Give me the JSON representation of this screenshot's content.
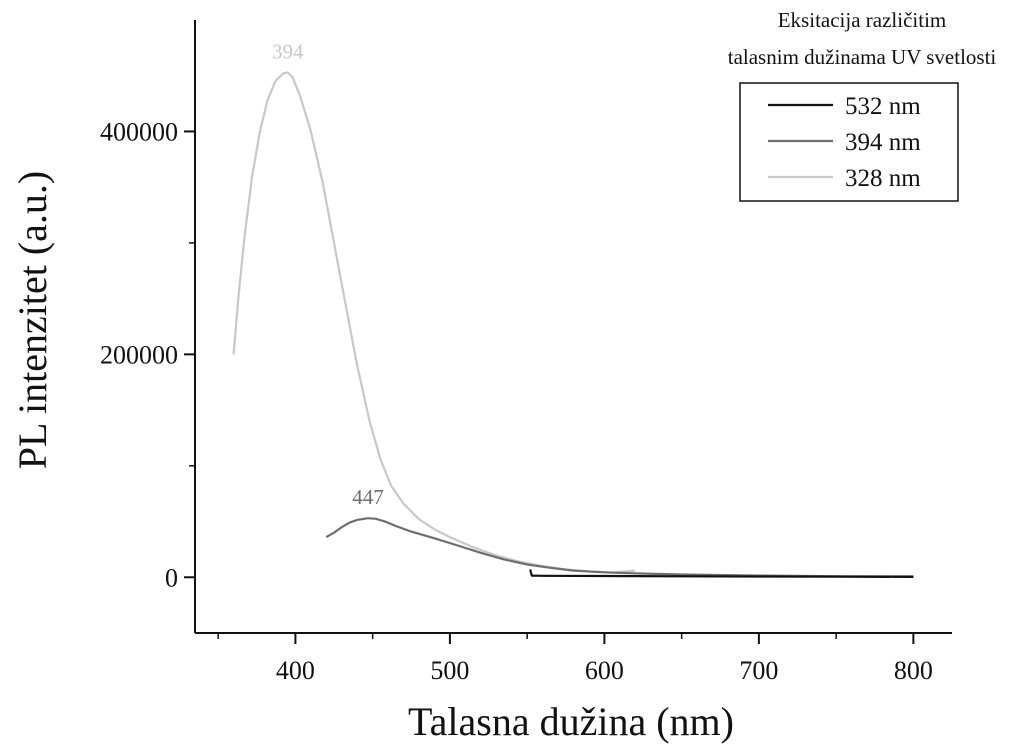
{
  "chart_data": {
    "type": "line",
    "title": "",
    "xlabel": "Talasna dužina (nm)",
    "ylabel": "PL intenzitet (a.u.)",
    "xlim": [
      335,
      825
    ],
    "ylim": [
      -50000,
      500000
    ],
    "xticks": [
      400,
      500,
      600,
      700,
      800
    ],
    "xtick_labels": [
      "400",
      "500",
      "600",
      "700",
      "800"
    ],
    "yticks": [
      0,
      200000,
      400000
    ],
    "ytick_labels": [
      "0",
      "200000",
      "400000"
    ],
    "grid": false,
    "legend": {
      "title_lines": [
        "Eksitacija različitim",
        "talasnim dužinama UV svetlosti"
      ],
      "placement": "top-right"
    },
    "series": [
      {
        "name": "532 nm",
        "color": "#111111",
        "points": [
          [
            552,
            7000
          ],
          [
            553,
            1500
          ],
          [
            560,
            1300
          ],
          [
            600,
            1100
          ],
          [
            650,
            900
          ],
          [
            700,
            700
          ],
          [
            750,
            500
          ],
          [
            800,
            300
          ]
        ]
      },
      {
        "name": "394 nm",
        "color": "#6e6e6e",
        "points": [
          [
            420,
            36000
          ],
          [
            425,
            40000
          ],
          [
            430,
            45000
          ],
          [
            435,
            49000
          ],
          [
            440,
            51500
          ],
          [
            447,
            53000
          ],
          [
            452,
            52500
          ],
          [
            458,
            50000
          ],
          [
            465,
            46000
          ],
          [
            475,
            41000
          ],
          [
            490,
            35000
          ],
          [
            505,
            28500
          ],
          [
            520,
            22000
          ],
          [
            535,
            16000
          ],
          [
            550,
            11500
          ],
          [
            565,
            8500
          ],
          [
            580,
            6000
          ],
          [
            600,
            4500
          ],
          [
            620,
            3500
          ],
          [
            650,
            2500
          ],
          [
            700,
            1500
          ],
          [
            750,
            1000
          ],
          [
            800,
            800
          ]
        ]
      },
      {
        "name": "328 nm",
        "color": "#c8c8c8",
        "points": [
          [
            360,
            200000
          ],
          [
            363,
            250000
          ],
          [
            367,
            305000
          ],
          [
            372,
            360000
          ],
          [
            377,
            400000
          ],
          [
            382,
            428000
          ],
          [
            387,
            445000
          ],
          [
            392,
            452000
          ],
          [
            395,
            453000
          ],
          [
            398,
            449000
          ],
          [
            403,
            432000
          ],
          [
            410,
            400000
          ],
          [
            418,
            352000
          ],
          [
            425,
            300000
          ],
          [
            432,
            248000
          ],
          [
            440,
            190000
          ],
          [
            448,
            140000
          ],
          [
            455,
            106000
          ],
          [
            462,
            82000
          ],
          [
            470,
            66000
          ],
          [
            480,
            52000
          ],
          [
            490,
            43000
          ],
          [
            500,
            36000
          ],
          [
            515,
            27000
          ],
          [
            530,
            19500
          ],
          [
            545,
            14000
          ],
          [
            560,
            10000
          ],
          [
            575,
            7000
          ],
          [
            590,
            5200
          ],
          [
            605,
            4200
          ],
          [
            620,
            6000
          ]
        ]
      }
    ],
    "annotations": [
      {
        "text": "394",
        "x": 395,
        "y": 453000,
        "color": "#c8c8c8"
      },
      {
        "text": "447",
        "x": 447,
        "y": 53000,
        "color": "#6e6e6e"
      }
    ]
  }
}
